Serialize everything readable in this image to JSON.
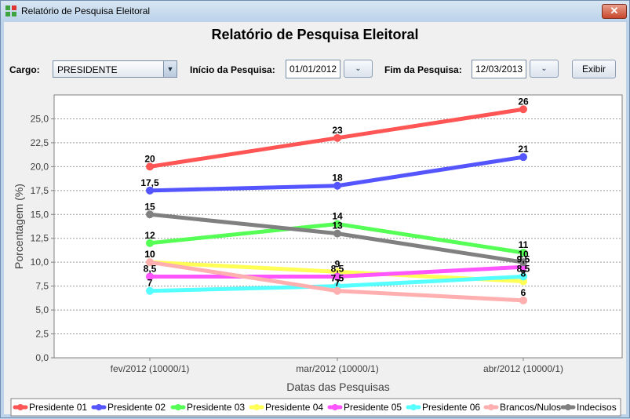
{
  "window": {
    "title": "Relatório de Pesquisa Eleitoral",
    "close_glyph": "✕"
  },
  "report_title": "Relatório de Pesquisa Eleitoral",
  "filters": {
    "cargo_label": "Cargo:",
    "cargo_value": "PRESIDENTE",
    "inicio_label": "Início da Pesquisa:",
    "inicio_value": "01/01/2012",
    "fim_label": "Fim da Pesquisa:",
    "fim_value": "12/03/2013",
    "exibir_label": "Exibir"
  },
  "chart_data": {
    "type": "line",
    "xlabel": "Datas das Pesquisas",
    "ylabel": "Porcentagem (%)",
    "ylim": [
      0,
      27.5
    ],
    "yticks": [
      "0,0",
      "2,5",
      "5,0",
      "7,5",
      "10,0",
      "12,5",
      "15,0",
      "17,5",
      "20,0",
      "22,5",
      "25,0"
    ],
    "categories": [
      "fev/2012 (10000/1)",
      "mar/2012 (10000/1)",
      "abr/2012 (10000/1)"
    ],
    "grid": true,
    "legend_position": "bottom",
    "series": [
      {
        "name": "Presidente 01",
        "color": "#ff5555",
        "values": [
          20,
          23,
          26
        ],
        "labels": [
          "20",
          "23",
          "26"
        ]
      },
      {
        "name": "Presidente 02",
        "color": "#5555ff",
        "values": [
          17.5,
          18,
          21
        ],
        "labels": [
          "17,5",
          "18",
          "21"
        ]
      },
      {
        "name": "Presidente 03",
        "color": "#55ff55",
        "values": [
          12,
          14,
          11
        ],
        "labels": [
          "12",
          "14",
          "11"
        ]
      },
      {
        "name": "Presidente 04",
        "color": "#ffff55",
        "values": [
          10,
          9,
          8
        ],
        "labels": [
          "10",
          "9",
          "8"
        ]
      },
      {
        "name": "Presidente 05",
        "color": "#ff55ff",
        "values": [
          8.5,
          8.5,
          9.5
        ],
        "labels": [
          "8,5",
          "8,5",
          "9,5"
        ]
      },
      {
        "name": "Presidente 06",
        "color": "#55ffff",
        "values": [
          7,
          7.5,
          8.5
        ],
        "labels": [
          "7",
          "7,5",
          "8,5"
        ]
      },
      {
        "name": "Brancos/Nulos",
        "color": "#ffafaf",
        "values": [
          10,
          7,
          6
        ],
        "labels": [
          "10",
          "7",
          "6"
        ]
      },
      {
        "name": "Indecisos",
        "color": "#808080",
        "values": [
          15,
          13,
          10
        ],
        "labels": [
          "15",
          "13",
          "10"
        ]
      }
    ]
  }
}
